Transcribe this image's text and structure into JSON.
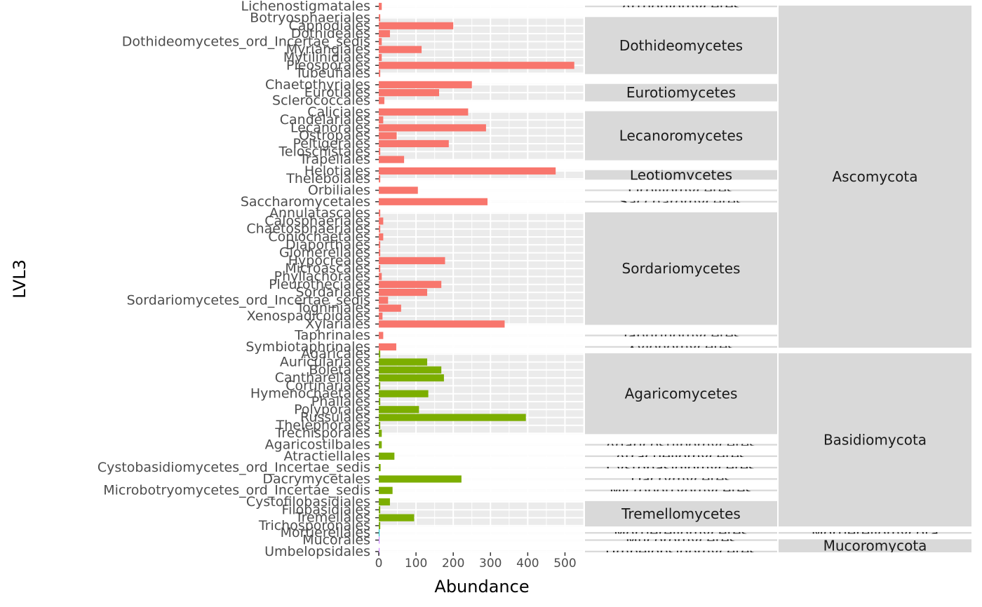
{
  "chart_data": {
    "type": "bar",
    "orientation": "horizontal",
    "xlabel": "Abundance",
    "ylabel": "LVL3",
    "xlim": [
      0,
      550
    ],
    "xticks": [
      0,
      100,
      200,
      300,
      400,
      500
    ],
    "grid": true,
    "legend": "none",
    "colors": {
      "Ascomycota": "#F8766D",
      "Basidiomycota": "#7CAE00",
      "Mortierellomycota": "#00BFC4",
      "Mucoromycota": "#C77CFF"
    },
    "phyla": [
      {
        "name": "Ascomycota",
        "classes": [
          {
            "name": "Arthoniomycetes",
            "orders": [
              {
                "name": "Lichenostigmatales",
                "value": 8
              }
            ]
          },
          {
            "name": "Dothideomycetes",
            "orders": [
              {
                "name": "Tubeufiales",
                "value": 4
              },
              {
                "name": "Pleosporales",
                "value": 525
              },
              {
                "name": "Mytilinidiales",
                "value": 8
              },
              {
                "name": "Myriangiales",
                "value": 115
              },
              {
                "name": "Dothideomycetes_ord_Incertae_sedis",
                "value": 8
              },
              {
                "name": "Dothideales",
                "value": 30
              },
              {
                "name": "Capnodiales",
                "value": 200
              },
              {
                "name": "Botryosphaeriales",
                "value": 4
              }
            ]
          },
          {
            "name": "Eurotiomycetes",
            "orders": [
              {
                "name": "Sclerococcales",
                "value": 15
              },
              {
                "name": "Eurotiales",
                "value": 162
              },
              {
                "name": "Chaetothyriales",
                "value": 250
              }
            ]
          },
          {
            "name": "Lecanoromycetes",
            "orders": [
              {
                "name": "Trapeliales",
                "value": 68
              },
              {
                "name": "Teloschistales",
                "value": 4
              },
              {
                "name": "Peltigerales",
                "value": 188
              },
              {
                "name": "Ostropales",
                "value": 48
              },
              {
                "name": "Lecanorales",
                "value": 288
              },
              {
                "name": "Candelariales",
                "value": 12
              },
              {
                "name": "Caliciales",
                "value": 240
              }
            ]
          },
          {
            "name": "Leotiomycetes",
            "orders": [
              {
                "name": "Thelebolales",
                "value": 4
              },
              {
                "name": "Helotiales",
                "value": 475
              }
            ]
          },
          {
            "name": "Orbiliomycetes",
            "orders": [
              {
                "name": "Orbiliales",
                "value": 105
              }
            ]
          },
          {
            "name": "Saccharomycetes",
            "orders": [
              {
                "name": "Saccharomycetales",
                "value": 292
              }
            ]
          },
          {
            "name": "Sordariomycetes",
            "orders": [
              {
                "name": "Xylariales",
                "value": 338
              },
              {
                "name": "Xenospadicoidales",
                "value": 10
              },
              {
                "name": "Togniniales",
                "value": 60
              },
              {
                "name": "Sordariomycetes_ord_Incertae_sedis",
                "value": 25
              },
              {
                "name": "Sordariales",
                "value": 130
              },
              {
                "name": "Pleurotheciales",
                "value": 168
              },
              {
                "name": "Phyllachorales",
                "value": 8
              },
              {
                "name": "Microascales",
                "value": 4
              },
              {
                "name": "Hypocreales",
                "value": 178
              },
              {
                "name": "Glomerellales",
                "value": 4
              },
              {
                "name": "Diaporthales",
                "value": 4
              },
              {
                "name": "Coniochaetales",
                "value": 12
              },
              {
                "name": "Chaetosphaeriales",
                "value": 4
              },
              {
                "name": "Calosphaeriales",
                "value": 12
              },
              {
                "name": "Annulatascales",
                "value": 4
              }
            ]
          },
          {
            "name": "Taphrinomycetes",
            "orders": [
              {
                "name": "Taphrinales",
                "value": 12
              }
            ]
          },
          {
            "name": "Xylonomycetes",
            "orders": [
              {
                "name": "Symbiotaphrinales",
                "value": 47
              }
            ]
          }
        ]
      },
      {
        "name": "Basidiomycota",
        "classes": [
          {
            "name": "Agaricomycetes",
            "orders": [
              {
                "name": "Trechisporales",
                "value": 8
              },
              {
                "name": "Thelephorales",
                "value": 4
              },
              {
                "name": "Russulales",
                "value": 395
              },
              {
                "name": "Polyporales",
                "value": 108
              },
              {
                "name": "Phallales",
                "value": 4
              },
              {
                "name": "Hymenochaetales",
                "value": 133
              },
              {
                "name": "Cortinariales",
                "value": 4
              },
              {
                "name": "Cantharellales",
                "value": 175
              },
              {
                "name": "Boletales",
                "value": 168
              },
              {
                "name": "Auriculariales",
                "value": 130
              },
              {
                "name": "Agaricales",
                "value": 4
              }
            ]
          },
          {
            "name": "Agaricostilbomycetes",
            "orders": [
              {
                "name": "Agaricostilbales",
                "value": 8
              }
            ]
          },
          {
            "name": "Atractiellomycetes",
            "orders": [
              {
                "name": "Atractiellales",
                "value": 42
              }
            ]
          },
          {
            "name": "Cystobasidiomycetes",
            "orders": [
              {
                "name": "Cystobasidiomycetes_ord_Incertae_sedis",
                "value": 5
              }
            ]
          },
          {
            "name": "Dacrymycetes",
            "orders": [
              {
                "name": "Dacrymycetales",
                "value": 222
              }
            ]
          },
          {
            "name": "Microbotryomycetes",
            "orders": [
              {
                "name": "Microbotryomycetes_ord_Incertae_sedis",
                "value": 37
              }
            ]
          },
          {
            "name": "Tremellomycetes",
            "orders": [
              {
                "name": "Trichosporonales",
                "value": 4
              },
              {
                "name": "Tremellales",
                "value": 95
              },
              {
                "name": "Filobasidiales",
                "value": 4
              },
              {
                "name": "Cystofilobasidiales",
                "value": 30
              }
            ]
          }
        ]
      },
      {
        "name": "Mortierellomycota",
        "classes": [
          {
            "name": "Mortierellomycetes",
            "orders": [
              {
                "name": "Mortierellales",
                "value": 1
              }
            ]
          }
        ]
      },
      {
        "name": "Mucoromycota",
        "classes": [
          {
            "name": "Mucoromycetes",
            "orders": [
              {
                "name": "Mucorales",
                "value": 2
              }
            ]
          },
          {
            "name": "Umbelopsidomycetes",
            "orders": [
              {
                "name": "Umbelopsidales",
                "value": 2
              }
            ]
          }
        ]
      }
    ]
  }
}
